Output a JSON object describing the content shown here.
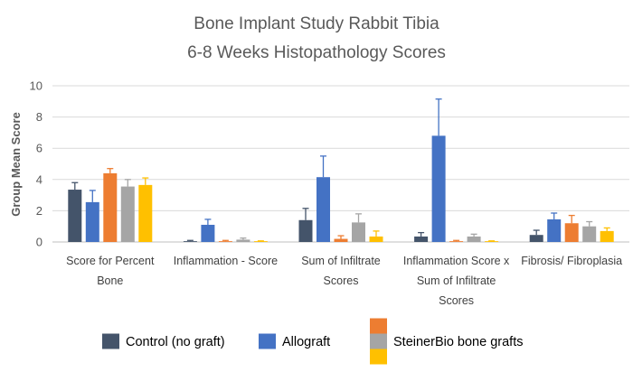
{
  "chart_data": {
    "type": "bar",
    "title": [
      "Bone Implant Study Rabbit Tibia",
      "6-8 Weeks Histopathology Scores"
    ],
    "ylabel": "Group Mean Score",
    "xlabel": "",
    "ylim": [
      0,
      10
    ],
    "yticks": [
      "0",
      "2",
      "4",
      "6",
      "8",
      "10"
    ],
    "grid": true,
    "legend_position": "bottom",
    "categories": [
      [
        "Score for Percent",
        "Bone"
      ],
      [
        "Inflammation - Score"
      ],
      [
        "Sum of Infiltrate",
        "Scores"
      ],
      [
        "Inflammation Score x",
        "Sum of Infiltrate",
        "Scores"
      ],
      [
        "Fibrosis/ Fibroplasia"
      ]
    ],
    "series": [
      {
        "color": "#44546a",
        "values": [
          3.35,
          0.05,
          1.4,
          0.35,
          0.45
        ],
        "errors": [
          0.45,
          0.05,
          0.75,
          0.25,
          0.3
        ]
      },
      {
        "color": "#4472c4",
        "values": [
          2.55,
          1.1,
          4.15,
          6.8,
          1.45
        ],
        "errors": [
          0.75,
          0.35,
          1.35,
          2.35,
          0.4
        ]
      },
      {
        "color": "#ed7d31",
        "values": [
          4.4,
          0.05,
          0.2,
          0.05,
          1.2
        ],
        "errors": [
          0.3,
          0.05,
          0.2,
          0.05,
          0.5
        ]
      },
      {
        "color": "#a5a5a5",
        "values": [
          3.55,
          0.15,
          1.25,
          0.35,
          1.0
        ],
        "errors": [
          0.45,
          0.1,
          0.55,
          0.15,
          0.3
        ]
      },
      {
        "color": "#ffc000",
        "values": [
          3.65,
          0.05,
          0.35,
          0.05,
          0.7
        ],
        "errors": [
          0.45,
          0.02,
          0.35,
          0.02,
          0.2
        ]
      }
    ]
  },
  "legend": [
    {
      "label": "Control (no graft)",
      "colors": [
        "#44546a"
      ]
    },
    {
      "label": "Allograft",
      "colors": [
        "#4472c4"
      ]
    },
    {
      "label": "SteinerBio bone grafts",
      "colors": [
        "#ed7d31",
        "#a5a5a5",
        "#ffc000"
      ]
    }
  ]
}
